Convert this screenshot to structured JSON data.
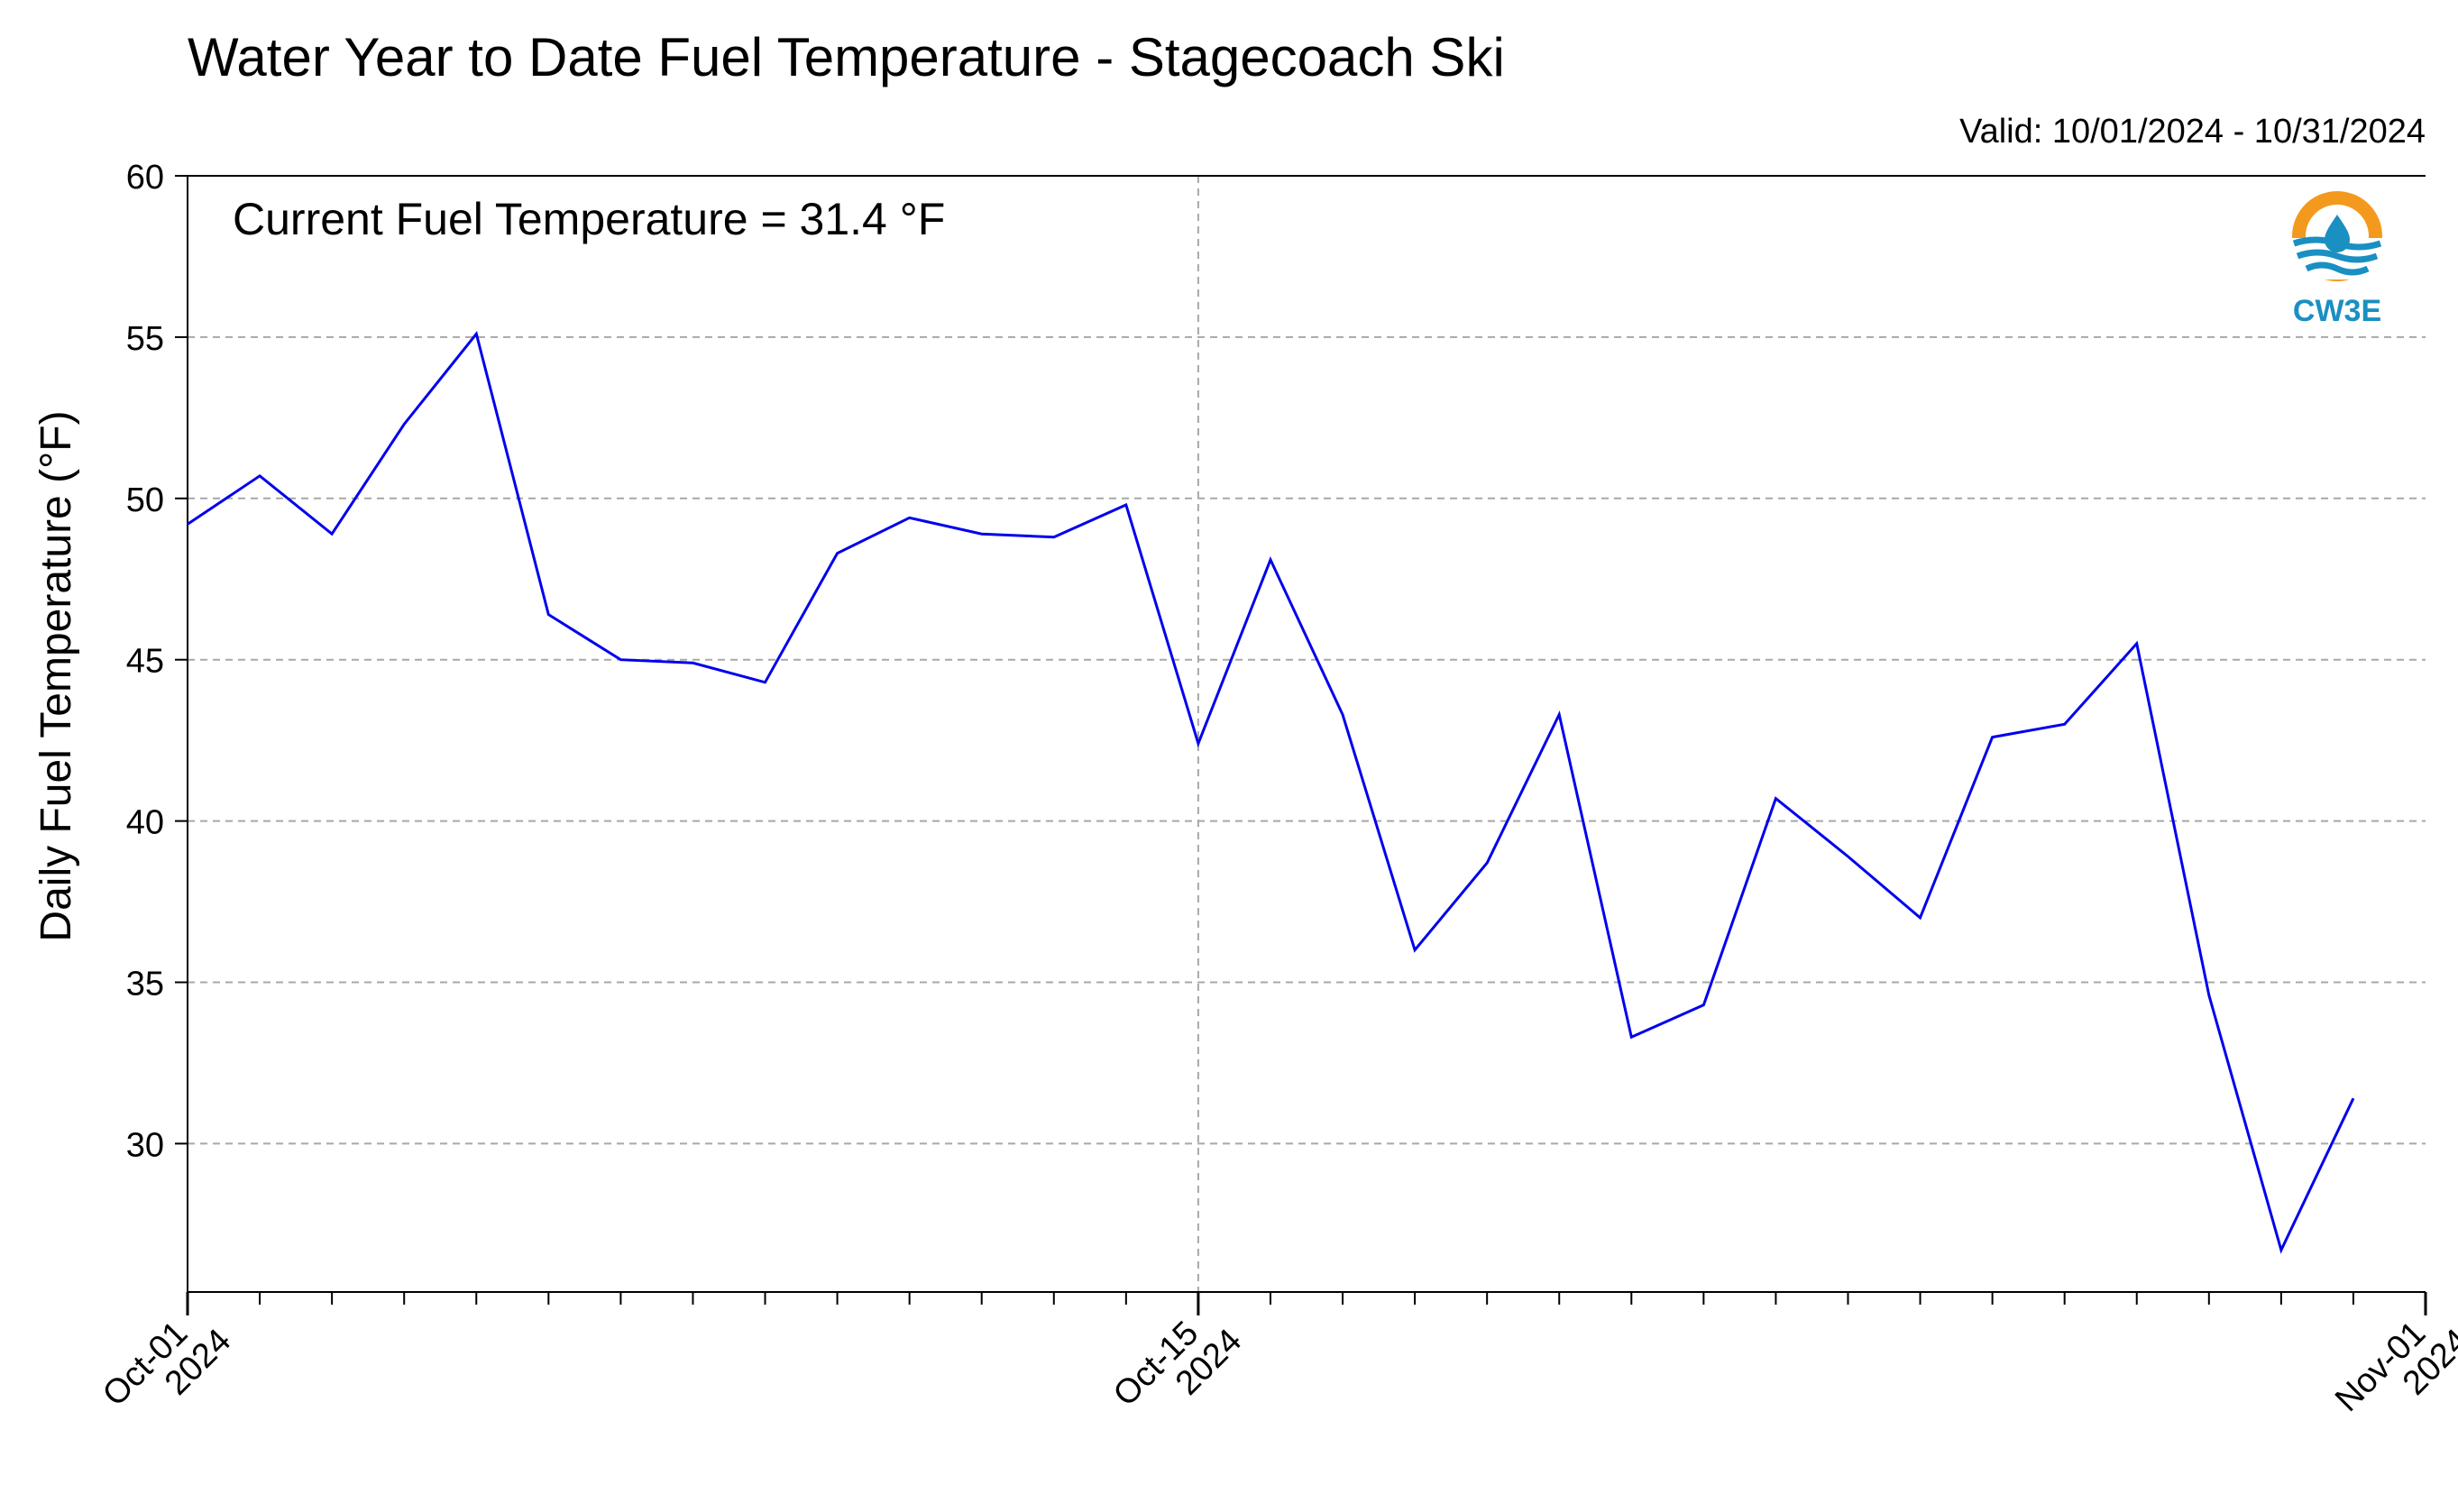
{
  "chart_data": {
    "type": "line",
    "title": "Water Year to Date Fuel Temperature - Stagecoach Ski",
    "subtitle": "Valid: 10/01/2024 - 10/31/2024",
    "annotation": "Current Fuel Temperature = 31.4 °F",
    "xlabel": "",
    "ylabel": "Daily Fuel Temperature (°F)",
    "ylim": [
      25.4,
      60
    ],
    "yticks": [
      30,
      35,
      40,
      45,
      50,
      55,
      60
    ],
    "xlim": [
      "2024-10-01",
      "2024-11-01"
    ],
    "xticks": [
      {
        "date": "2024-10-01",
        "label": [
          "Oct-01",
          "2024"
        ]
      },
      {
        "date": "2024-10-15",
        "label": [
          "Oct-15",
          "2024"
        ]
      },
      {
        "date": "2024-11-01",
        "label": [
          "Nov-01",
          "2024"
        ]
      }
    ],
    "grid": true,
    "line_color": "#0000ee",
    "x": [
      "2024-10-01",
      "2024-10-02",
      "2024-10-03",
      "2024-10-04",
      "2024-10-05",
      "2024-10-06",
      "2024-10-07",
      "2024-10-08",
      "2024-10-09",
      "2024-10-10",
      "2024-10-11",
      "2024-10-12",
      "2024-10-13",
      "2024-10-14",
      "2024-10-15",
      "2024-10-16",
      "2024-10-17",
      "2024-10-18",
      "2024-10-19",
      "2024-10-20",
      "2024-10-21",
      "2024-10-22",
      "2024-10-23",
      "2024-10-24",
      "2024-10-25",
      "2024-10-26",
      "2024-10-27",
      "2024-10-28",
      "2024-10-29",
      "2024-10-30",
      "2024-10-31"
    ],
    "values": [
      49.2,
      50.7,
      48.9,
      52.3,
      55.1,
      46.4,
      45.0,
      44.9,
      44.3,
      48.3,
      49.4,
      48.9,
      48.8,
      49.8,
      42.4,
      48.1,
      43.3,
      36.0,
      38.7,
      43.3,
      33.3,
      34.3,
      40.7,
      38.9,
      37.0,
      42.6,
      43.0,
      45.5,
      34.6,
      26.7,
      31.4
    ]
  },
  "logo": {
    "text": "CW3E",
    "colors": {
      "orange": "#f39a1e",
      "blue": "#1a8fc2"
    }
  }
}
